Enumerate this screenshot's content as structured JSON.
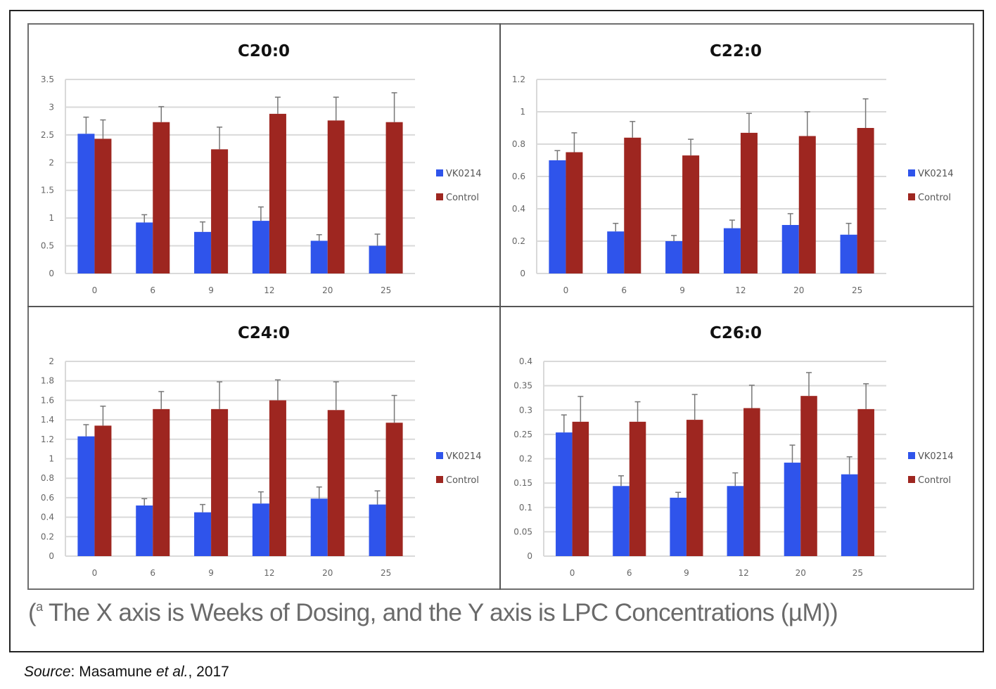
{
  "caption": {
    "open": "(",
    "superscript": "a",
    "text": " The X axis is Weeks of Dosing, and the Y axis is LPC Concentrations (µM))"
  },
  "source": {
    "label": "Source",
    "sep": ": Masamune ",
    "etal": "et al.",
    "year": ", 2017"
  },
  "colors": {
    "VK0214": "#2f54eb",
    "Control": "#9e2620",
    "grid": "#d9d9d9",
    "error_bar": "#777777"
  },
  "chart_data": [
    {
      "type": "bar",
      "title": "C20:0",
      "xlabel": "Weeks of Dosing",
      "ylabel": "LPC Concentrations (µM)",
      "categories": [
        "0",
        "6",
        "9",
        "12",
        "20",
        "25"
      ],
      "ylim": [
        0,
        3.5
      ],
      "yticks": [
        "0",
        "0.5",
        "1",
        "1.5",
        "2",
        "2.5",
        "3",
        "3.5"
      ],
      "ytick_values": [
        0,
        0.5,
        1,
        1.5,
        2,
        2.5,
        3,
        3.5
      ],
      "grid": true,
      "legend_position": "right",
      "series": [
        {
          "name": "VK0214",
          "values": [
            2.52,
            0.92,
            0.75,
            0.95,
            0.59,
            0.5
          ],
          "errors": [
            0.3,
            0.14,
            0.18,
            0.25,
            0.11,
            0.21
          ]
        },
        {
          "name": "Control",
          "values": [
            2.43,
            2.73,
            2.24,
            2.88,
            2.76,
            2.73
          ],
          "errors": [
            0.34,
            0.28,
            0.4,
            0.3,
            0.42,
            0.53
          ]
        }
      ]
    },
    {
      "type": "bar",
      "title": "C22:0",
      "xlabel": "Weeks of Dosing",
      "ylabel": "LPC Concentrations (µM)",
      "categories": [
        "0",
        "6",
        "9",
        "12",
        "20",
        "25"
      ],
      "ylim": [
        0,
        1.2
      ],
      "yticks": [
        "0",
        "0.2",
        "0.4",
        "0.6",
        "0.8",
        "1",
        "1.2"
      ],
      "ytick_values": [
        0,
        0.2,
        0.4,
        0.6,
        0.8,
        1,
        1.2
      ],
      "grid": true,
      "legend_position": "right",
      "series": [
        {
          "name": "VK0214",
          "values": [
            0.7,
            0.26,
            0.2,
            0.28,
            0.3,
            0.24
          ],
          "errors": [
            0.06,
            0.05,
            0.035,
            0.05,
            0.07,
            0.07
          ]
        },
        {
          "name": "Control",
          "values": [
            0.75,
            0.84,
            0.73,
            0.87,
            0.85,
            0.9
          ],
          "errors": [
            0.12,
            0.1,
            0.1,
            0.12,
            0.15,
            0.18
          ]
        }
      ]
    },
    {
      "type": "bar",
      "title": "C24:0",
      "xlabel": "Weeks of Dosing",
      "ylabel": "LPC Concentrations (µM)",
      "categories": [
        "0",
        "6",
        "9",
        "12",
        "20",
        "25"
      ],
      "ylim": [
        0,
        2
      ],
      "yticks": [
        "0",
        "0.2",
        "0.4",
        "0.6",
        "0.8",
        "1",
        "1.2",
        "1.4",
        "1.6",
        "1.8",
        "2"
      ],
      "ytick_values": [
        0,
        0.2,
        0.4,
        0.6,
        0.8,
        1,
        1.2,
        1.4,
        1.6,
        1.8,
        2
      ],
      "grid": true,
      "legend_position": "right",
      "series": [
        {
          "name": "VK0214",
          "values": [
            1.23,
            0.52,
            0.45,
            0.54,
            0.59,
            0.53
          ],
          "errors": [
            0.12,
            0.07,
            0.08,
            0.12,
            0.12,
            0.14
          ]
        },
        {
          "name": "Control",
          "values": [
            1.34,
            1.51,
            1.51,
            1.6,
            1.5,
            1.37
          ],
          "errors": [
            0.2,
            0.18,
            0.28,
            0.21,
            0.29,
            0.28
          ]
        }
      ]
    },
    {
      "type": "bar",
      "title": "C26:0",
      "xlabel": "Weeks of Dosing",
      "ylabel": "LPC Concentrations (µM)",
      "categories": [
        "0",
        "6",
        "9",
        "12",
        "20",
        "25"
      ],
      "ylim": [
        0,
        0.4
      ],
      "yticks": [
        "0",
        "0.05",
        "0.1",
        "0.15",
        "0.2",
        "0.25",
        "0.3",
        "0.35",
        "0.4"
      ],
      "ytick_values": [
        0,
        0.05,
        0.1,
        0.15,
        0.2,
        0.25,
        0.3,
        0.35,
        0.4
      ],
      "grid": true,
      "legend_position": "right",
      "series": [
        {
          "name": "VK0214",
          "values": [
            0.254,
            0.144,
            0.12,
            0.144,
            0.192,
            0.168
          ],
          "errors": [
            0.036,
            0.021,
            0.011,
            0.027,
            0.036,
            0.036
          ]
        },
        {
          "name": "Control",
          "values": [
            0.276,
            0.276,
            0.28,
            0.304,
            0.329,
            0.302
          ],
          "errors": [
            0.052,
            0.041,
            0.052,
            0.047,
            0.048,
            0.052
          ]
        }
      ]
    }
  ]
}
